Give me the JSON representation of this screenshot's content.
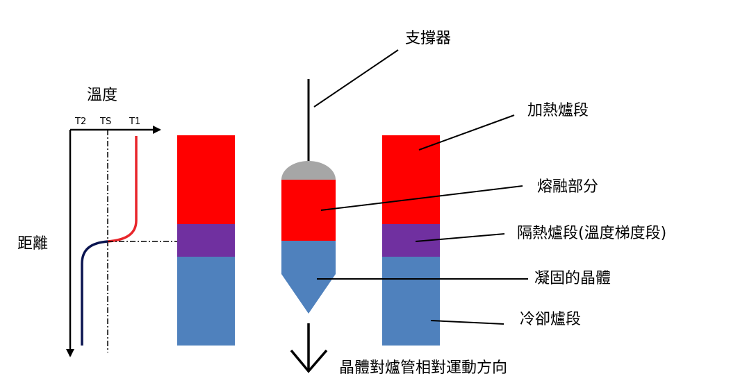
{
  "axis": {
    "temperature_label": "溫度",
    "distance_label": "距離",
    "ticks": [
      "T2",
      "TS",
      "T1"
    ],
    "profile_colors": {
      "hot": "#e8262b",
      "cold": "#0a1450"
    }
  },
  "labels": {
    "support": "支撐器",
    "heating": "加熱爐段",
    "melt": "熔融部分",
    "insulation": "隔熱爐段(溫度梯度段)",
    "solidified": "凝固的晶體",
    "cooling": "冷卻爐段",
    "motion": "晶體對爐管相對運動方向"
  },
  "colors": {
    "heating_zone": "#ff0000",
    "insulation_zone": "#7030a0",
    "cooling_zone": "#4f81bd",
    "cap": "#a6a6a6",
    "line": "#000000"
  }
}
